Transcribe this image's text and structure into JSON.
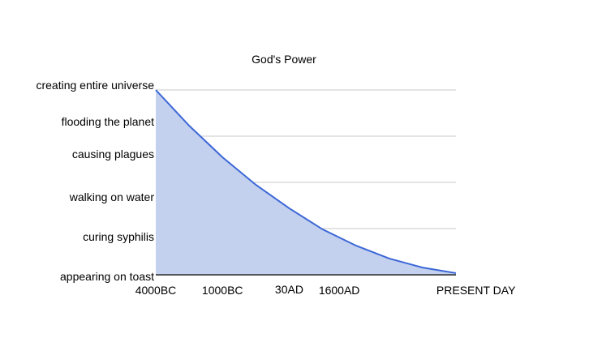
{
  "chart_data": {
    "type": "area",
    "title": "God's Power",
    "xlabel": "",
    "ylabel": "",
    "x": [
      0,
      1,
      2,
      3,
      4,
      5,
      6,
      7,
      8,
      9
    ],
    "values": [
      100,
      80.7,
      63.6,
      48.7,
      36,
      24.6,
      15.8,
      8.8,
      3.9,
      0.9
    ],
    "ylim": [
      0,
      100
    ],
    "xlim": [
      0,
      9
    ],
    "grid": true,
    "legend": "none",
    "y_tick_labels": [
      {
        "label": "creating entire universe",
        "value": 102.6
      },
      {
        "label": "flooding the planet",
        "value": 83
      },
      {
        "label": "causing plagues",
        "value": 65.4
      },
      {
        "label": "walking on water",
        "value": 42
      },
      {
        "label": "curing syphilis",
        "value": 20.6
      },
      {
        "label": "appearing on toast",
        "value": -0.9
      }
    ],
    "x_tick_labels": [
      {
        "label": "4000BC",
        "x": 0
      },
      {
        "label": "1000BC",
        "x": 2
      },
      {
        "label": "30AD",
        "x": 4
      },
      {
        "label": "1600AD",
        "x": 5.5
      },
      {
        "label": "PRESENT DAY",
        "x": 9.6
      }
    ],
    "gridlines": [
      0,
      25,
      50,
      75,
      100
    ],
    "colors": {
      "line": "#3c67d6",
      "fill": "#c3d1ef",
      "grid": "#c8c8c8",
      "axis": "#333333"
    }
  }
}
